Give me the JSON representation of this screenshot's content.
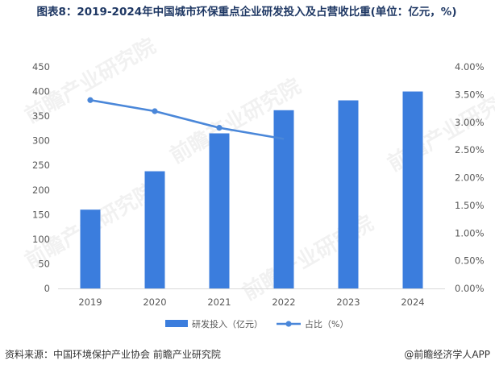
{
  "title": "图表8：2019-2024年中国城市环保重点企业研发投入及占营收比重(单位：亿元，%)",
  "source": "资料来源：中国环境保护产业协会 前瞻产业研究院",
  "brand": "@前瞻经济学人APP",
  "watermark": "前瞻产业研究院",
  "colors": {
    "bar": "#3b7ddd",
    "line": "#4a87d9",
    "axis": "#d9d9d9",
    "text": "#595959"
  },
  "chart_data": {
    "type": "bar+line",
    "categories": [
      "2019",
      "2020",
      "2021",
      "2022",
      "2023",
      "2024"
    ],
    "series": [
      {
        "name": "研发投入（亿元）",
        "type": "bar",
        "axis": "left",
        "values": [
          160,
          238,
          315,
          362,
          382,
          400
        ]
      },
      {
        "name": "占比（%）",
        "type": "line",
        "axis": "right",
        "values": [
          3.4,
          3.2,
          2.9,
          2.7,
          null,
          null
        ]
      }
    ],
    "left_axis": {
      "min": 0,
      "max": 450,
      "step": 50,
      "ticks": [
        "0",
        "50",
        "100",
        "150",
        "200",
        "250",
        "300",
        "350",
        "400",
        "450"
      ]
    },
    "right_axis": {
      "min": 0,
      "max": 4,
      "step": 0.5,
      "ticks": [
        "0.00%",
        "0.50%",
        "1.00%",
        "1.50%",
        "2.00%",
        "2.50%",
        "3.00%",
        "3.50%",
        "4.00%"
      ]
    },
    "legend": [
      "研发投入（亿元）",
      "占比（%）"
    ],
    "legend_position": "bottom"
  }
}
